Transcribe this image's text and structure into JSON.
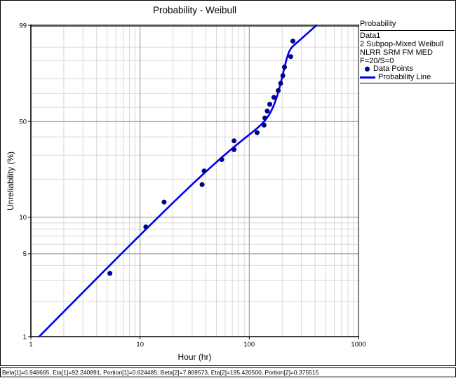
{
  "legend": {
    "header": "Probability",
    "dataset": "Data1",
    "model_label": "2 Subpop-Mixed Weibull",
    "method_label": "NLRR SRM FM MED",
    "sample_label": "F=20/S=0",
    "points_label": "Data Points",
    "line_label": "Probability Line"
  },
  "status_bar": {
    "text": "Beta[1]=0.948665, Eta[1]=92.240891, Portion[1]=0.624485; Beta[2]=7.869573, Eta[2]=195.420500, Portion[2]=0.375515"
  },
  "chart_data": {
    "type": "scatter",
    "title": "Probability - Weibull",
    "xlabel": "Hour (hr)",
    "ylabel": "Unreliability (%)",
    "x_scale": "log10",
    "y_scale": "weibull-probability",
    "xlim": [
      1,
      1000
    ],
    "ylim": [
      1,
      99
    ],
    "x_ticks": [
      1,
      10,
      100,
      1000
    ],
    "y_ticks": [
      99,
      50,
      10,
      5,
      1
    ],
    "y_minor_grid": [
      2,
      3,
      4,
      6,
      7,
      8,
      9,
      20,
      30,
      40,
      60,
      70,
      80,
      90,
      95
    ],
    "y_major_grid": [
      5,
      10,
      50
    ],
    "x_major_grid": [
      10,
      100
    ],
    "grid": true,
    "legend_position": "right",
    "points": {
      "name": "Data Points",
      "hours": [
        5.3,
        11.3,
        16.6,
        37,
        38.6,
        56,
        72.5,
        72.5,
        118,
        136.5,
        139,
        146,
        154,
        168,
        184,
        194,
        203,
        210,
        240,
        251
      ],
      "unreliability_pct": [
        3.43,
        8.33,
        13.24,
        18.14,
        23.04,
        27.94,
        32.84,
        37.75,
        42.65,
        47.55,
        52.45,
        57.35,
        62.25,
        67.16,
        72.06,
        76.96,
        81.86,
        86.76,
        91.67,
        96.57
      ]
    },
    "fit_line": {
      "name": "Probability Line",
      "model": "2 Subpop-Mixed Weibull",
      "beta1": 0.948665,
      "eta1": 92.240891,
      "portion1": 0.624485,
      "beta2": 7.869573,
      "eta2": 195.4205,
      "portion2": 0.375515
    },
    "colors": {
      "line": "#0000ee",
      "point_fill": "#0000b2",
      "point_edge": "#000050",
      "grid_minor": "#d8d8d8",
      "grid_major": "#8f8f8f",
      "frame_top": "#555555",
      "axis": "#000000"
    }
  }
}
